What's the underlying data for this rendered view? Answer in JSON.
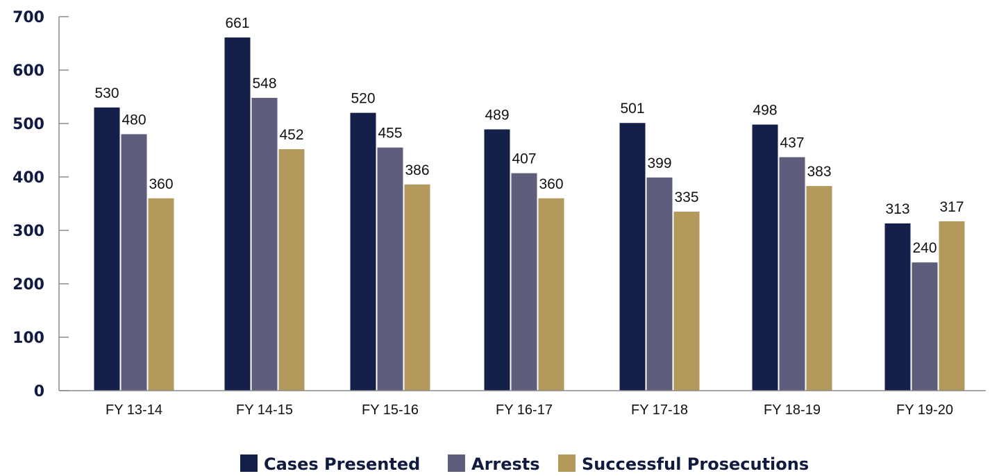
{
  "chart_data": {
    "type": "bar",
    "title": "",
    "xlabel": "",
    "ylabel": "",
    "ylim": [
      0,
      700
    ],
    "y_ticks": [
      0,
      100,
      200,
      300,
      400,
      500,
      600,
      700
    ],
    "categories": [
      "FY 13-14",
      "FY 14-15",
      "FY 15-16",
      "FY 16-17",
      "FY 17-18",
      "FY 18-19",
      "FY 19-20"
    ],
    "series": [
      {
        "name": "Cases Presented",
        "color": "#141f4a",
        "values": [
          530,
          661,
          520,
          489,
          501,
          498,
          313
        ]
      },
      {
        "name": "Arrests",
        "color": "#5e5e7c",
        "values": [
          480,
          548,
          455,
          407,
          399,
          437,
          240
        ]
      },
      {
        "name": "Successful Prosecutions",
        "color": "#b39a5c",
        "values": [
          360,
          452,
          386,
          360,
          335,
          383,
          317
        ]
      }
    ],
    "grid": false,
    "legend_position": "bottom-center"
  }
}
